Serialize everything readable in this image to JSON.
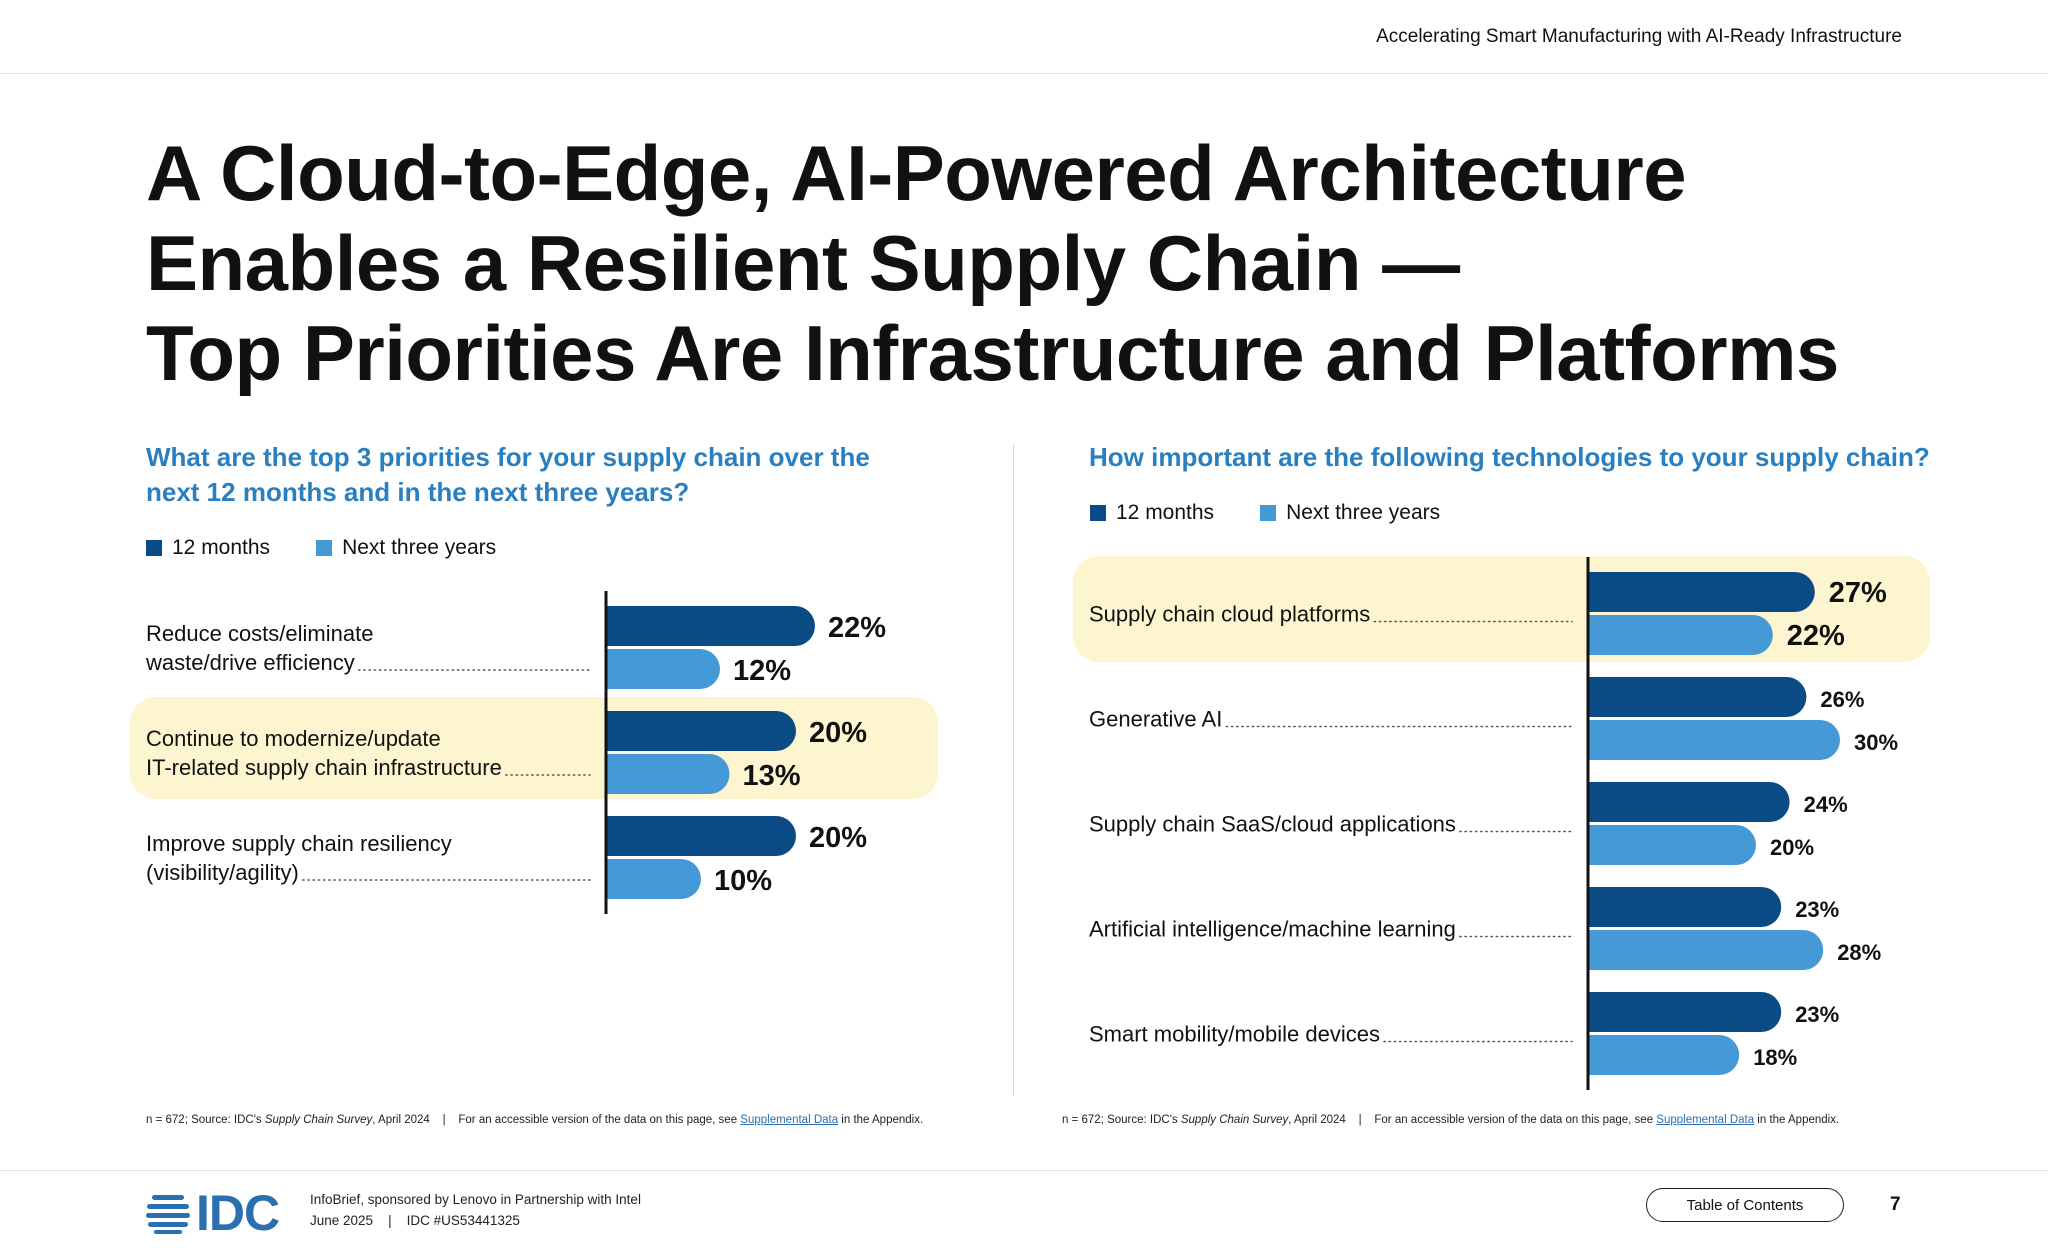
{
  "header": {
    "title": "Accelerating Smart Manufacturing with AI-Ready Infrastructure"
  },
  "page_title": {
    "line1": "A Cloud-to-Edge, AI-Powered Architecture",
    "line2": "Enables a Resilient Supply Chain —",
    "line3": "Top Priorities Are Infrastructure and Platforms"
  },
  "colors": {
    "series_12m": "#0a4a85",
    "series_3y": "#4599d6",
    "highlight": "#fdf5cf",
    "question": "#2a7fc0"
  },
  "chart_data": [
    {
      "type": "bar",
      "orientation": "horizontal",
      "title": "What are the top 3 priorities for your supply chain over the next 12 months and in the next three years?",
      "title_lines": [
        "What are the top 3 priorities for your supply chain over the",
        "next 12 months and in the next three years?"
      ],
      "legend": [
        "12 months",
        "Next three years"
      ],
      "categories": [
        {
          "lines": [
            "Reduce costs/eliminate",
            "waste/drive efficiency"
          ],
          "highlight": false
        },
        {
          "lines": [
            "Continue to modernize/update",
            "IT-related supply chain infrastructure"
          ],
          "highlight": true
        },
        {
          "lines": [
            "Improve supply chain resiliency",
            "(visibility/agility)"
          ],
          "highlight": false
        }
      ],
      "series": [
        {
          "name": "12 months",
          "values": [
            22,
            20,
            20
          ],
          "labels": [
            "22%",
            "20%",
            "20%"
          ]
        },
        {
          "name": "Next three years",
          "values": [
            12,
            13,
            10
          ],
          "labels": [
            "12%",
            "13%",
            "10%"
          ]
        }
      ]
    },
    {
      "type": "bar",
      "orientation": "horizontal",
      "title": "How important are the following technologies to your supply chain?",
      "title_lines": [
        "How important are the following technologies to your supply chain?"
      ],
      "legend": [
        "12 months",
        "Next three years"
      ],
      "categories": [
        {
          "lines": [
            "Supply chain cloud platforms"
          ],
          "highlight": true
        },
        {
          "lines": [
            "Generative AI"
          ],
          "highlight": false
        },
        {
          "lines": [
            "Supply chain SaaS/cloud applications"
          ],
          "highlight": false
        },
        {
          "lines": [
            "Artificial intelligence/machine learning"
          ],
          "highlight": false
        },
        {
          "lines": [
            "Smart mobility/mobile devices"
          ],
          "highlight": false
        }
      ],
      "series": [
        {
          "name": "12 months",
          "values": [
            27,
            26,
            24,
            23,
            23
          ],
          "labels": [
            "27%",
            "26%",
            "24%",
            "23%",
            "23%"
          ]
        },
        {
          "name": "Next three years",
          "values": [
            22,
            30,
            20,
            28,
            18
          ],
          "labels": [
            "22%",
            "30%",
            "20%",
            "28%",
            "18%"
          ]
        }
      ]
    }
  ],
  "footnote": {
    "prefix": "n = 672; Source: IDC's ",
    "survey": "Supply Chain Survey",
    "date": ", April 2024",
    "sep": "|",
    "access_text": "For an accessible version of the data on this page, see ",
    "link": "Supplemental Data",
    "suffix": " in the Appendix."
  },
  "footer": {
    "logo": "IDC",
    "info_line1": "InfoBrief, sponsored by Lenovo in Partnership with Intel",
    "info_date": "June 2025",
    "info_sep": "|",
    "info_id": "IDC #US53441325",
    "toc_label": "Table of Contents",
    "page_number": "7"
  }
}
